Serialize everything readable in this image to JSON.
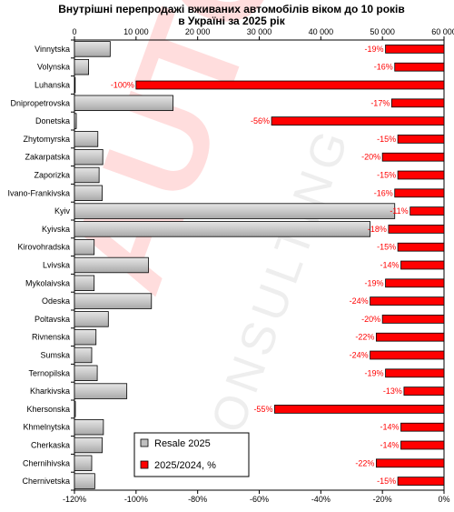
{
  "chart_data": {
    "type": "bar",
    "title": "Внутрішні  перепродажі вживаних автомобілів віком до 10 років",
    "subtitle": "в Україні за 2025 рік",
    "categories": [
      "Vinnytska",
      "Volynska",
      "Luhanska",
      "Dnipropetrovska",
      "Donetska",
      "Zhytomyrska",
      "Zakarpatska",
      "Zaporizka",
      "Ivano-Frankivska",
      "Kyiv",
      "Kyivska",
      "Kirovohradska",
      "Lvivska",
      "Mykolaivska",
      "Odeska",
      "Poltavska",
      "Rivnenska",
      "Sumska",
      "Ternopilska",
      "Kharkivska",
      "Khersonska",
      "Khmelnytska",
      "Cherkaska",
      "Chernihivska",
      "Chernivetska"
    ],
    "series": [
      {
        "name": "Resale 2025",
        "axis": "top",
        "unit": "count",
        "values": [
          5800,
          2300,
          0,
          16000,
          300,
          3800,
          4600,
          4000,
          4500,
          52000,
          48000,
          3200,
          12000,
          3200,
          12500,
          5500,
          3500,
          2800,
          3700,
          8500,
          150,
          4700,
          4500,
          2800,
          3300
        ]
      },
      {
        "name": "2025/2024, %",
        "axis": "bottom",
        "unit": "%",
        "values": [
          -19,
          -16,
          -100,
          -17,
          -56,
          -15,
          -20,
          -15,
          -16,
          -11,
          -18,
          -15,
          -14,
          -19,
          -24,
          -20,
          -22,
          -24,
          -19,
          -13,
          -55,
          -14,
          -14,
          -22,
          -15
        ],
        "labels": [
          "-19%",
          "-16%",
          "-100%",
          "-17%",
          "-56%",
          "-15%",
          "-20%",
          "-15%",
          "-16%",
          "-11%",
          "-18%",
          "-15%",
          "-14%",
          "-19%",
          "-24%",
          "-20%",
          "-22%",
          "-24%",
          "-19%",
          "-13%",
          "-55%",
          "-14%",
          "-14%",
          "-22%",
          "-15%"
        ]
      }
    ],
    "top_axis": {
      "ticks": [
        "0",
        "10 000",
        "20 000",
        "30 000",
        "40 000",
        "50 000",
        "60 000"
      ],
      "values": [
        0,
        10000,
        20000,
        30000,
        40000,
        50000,
        60000
      ],
      "lim": [
        0,
        60000
      ]
    },
    "bottom_axis": {
      "ticks": [
        "-120%",
        "-100%",
        "-80%",
        "-60%",
        "-40%",
        "-20%",
        "0%"
      ],
      "values": [
        -120,
        -100,
        -80,
        -60,
        -40,
        -20,
        0
      ],
      "lim": [
        -120,
        0
      ]
    },
    "legend": {
      "placement": "bottom-center",
      "items": [
        "Resale 2025",
        "2025/2024, %"
      ]
    },
    "grid": false,
    "colors": {
      "resale_fill": "#c0c0c0",
      "resale_stroke": "#000000",
      "pct_fill": "#ff0000",
      "pct_stroke": "#000000",
      "pct_label": "#ff0000"
    },
    "watermark": "AUTO-CONSULTING"
  }
}
